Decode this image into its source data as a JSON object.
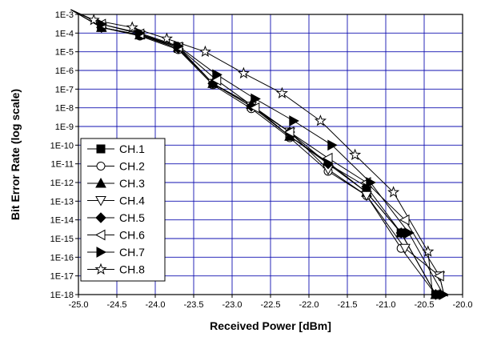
{
  "chart_data": {
    "type": "line",
    "xlabel": "Received Power [dBm]",
    "ylabel": "Bit Error Rate (log scale)",
    "xlim": [
      -25.0,
      -20.0
    ],
    "ylim_log10": [
      -18,
      -3
    ],
    "y_scale": "log",
    "grid": true,
    "legend_position": "bottom-left",
    "x_ticks": [
      "-25.0",
      "-24.5",
      "-24.0",
      "-23.5",
      "-23.0",
      "-22.5",
      "-22.0",
      "-21.5",
      "-21.0",
      "-20.5",
      "-20.0"
    ],
    "y_ticks": [
      "1E-3",
      "1E-4",
      "1E-5",
      "1E-6",
      "1E-7",
      "1E-8",
      "1E-9",
      "1E-10",
      "1E-11",
      "1E-12",
      "1E-13",
      "1E-14",
      "1E-15",
      "1E-16",
      "1E-17",
      "1E-18"
    ],
    "series": [
      {
        "name": "CH.1",
        "marker": "square-filled",
        "x": [
          -24.7,
          -24.2,
          -23.7,
          -23.25,
          -22.75,
          -22.25,
          -21.75,
          -21.25,
          -20.8,
          -20.35
        ],
        "y": [
          0.0002,
          8e-05,
          1.5e-05,
          2e-07,
          1.2e-08,
          3e-10,
          1.2e-11,
          3e-13,
          2e-15,
          1e-18
        ]
      },
      {
        "name": "CH.2",
        "marker": "circle-open",
        "x": [
          -24.7,
          -24.2,
          -23.7,
          -23.25,
          -22.75,
          -22.25,
          -21.75,
          -21.25,
          -20.8,
          -20.35
        ],
        "y": [
          0.0002,
          7e-05,
          1.3e-05,
          1.7e-07,
          9e-09,
          2.5e-10,
          4e-12,
          2e-13,
          3e-16,
          1e-18
        ]
      },
      {
        "name": "CH.3",
        "marker": "triangle-up-filled",
        "x": [
          -24.7,
          -24.2,
          -23.7,
          -23.25,
          -22.75,
          -22.25,
          -21.75,
          -21.25,
          -20.8,
          -20.35
        ],
        "y": [
          0.0002,
          8e-05,
          1.8e-05,
          2e-07,
          1.5e-08,
          3e-10,
          1e-11,
          3e-13,
          2e-15,
          1e-18
        ]
      },
      {
        "name": "CH.4",
        "marker": "triangle-down-open",
        "x": [
          -24.7,
          -24.2,
          -23.7,
          -23.25,
          -22.75,
          -22.25,
          -21.75,
          -21.25,
          -20.75,
          -20.3
        ],
        "y": [
          0.0002,
          8e-05,
          1.8e-05,
          2e-07,
          1.2e-08,
          5e-10,
          5e-12,
          2e-13,
          3e-16,
          1e-17
        ]
      },
      {
        "name": "CH.5",
        "marker": "diamond-filled",
        "x": [
          -24.7,
          -24.2,
          -23.7,
          -23.25,
          -22.75,
          -22.25,
          -21.75,
          -21.25,
          -20.8,
          -20.35
        ],
        "y": [
          0.0002,
          8e-05,
          1.5e-05,
          2e-07,
          1.2e-08,
          5e-10,
          1e-11,
          6e-13,
          2e-15,
          1e-18
        ]
      },
      {
        "name": "CH.6",
        "marker": "triangle-left-open",
        "x": [
          -24.7,
          -24.2,
          -23.7,
          -23.2,
          -22.7,
          -22.25,
          -21.75,
          -21.25,
          -20.75,
          -20.3
        ],
        "y": [
          0.0003,
          9e-05,
          1.8e-05,
          3e-07,
          1e-08,
          5e-10,
          2e-11,
          1e-12,
          1e-14,
          1e-17
        ]
      },
      {
        "name": "CH.7",
        "marker": "triangle-right-filled",
        "x": [
          -24.7,
          -24.2,
          -23.7,
          -23.2,
          -22.7,
          -22.2,
          -21.7,
          -21.2,
          -20.7,
          -20.25
        ],
        "y": [
          0.0003,
          0.0001,
          2e-05,
          6e-07,
          3e-08,
          2e-09,
          1e-10,
          1e-12,
          2e-15,
          1e-18
        ]
      },
      {
        "name": "CH.8",
        "marker": "star-open",
        "x": [
          -24.8,
          -24.3,
          -23.85,
          -23.35,
          -22.85,
          -22.35,
          -21.85,
          -21.4,
          -20.9,
          -20.45
        ],
        "y": [
          0.0005,
          0.0002,
          5e-05,
          1e-05,
          7e-07,
          6e-08,
          2e-09,
          3e-11,
          3e-13,
          2e-16
        ]
      }
    ]
  }
}
